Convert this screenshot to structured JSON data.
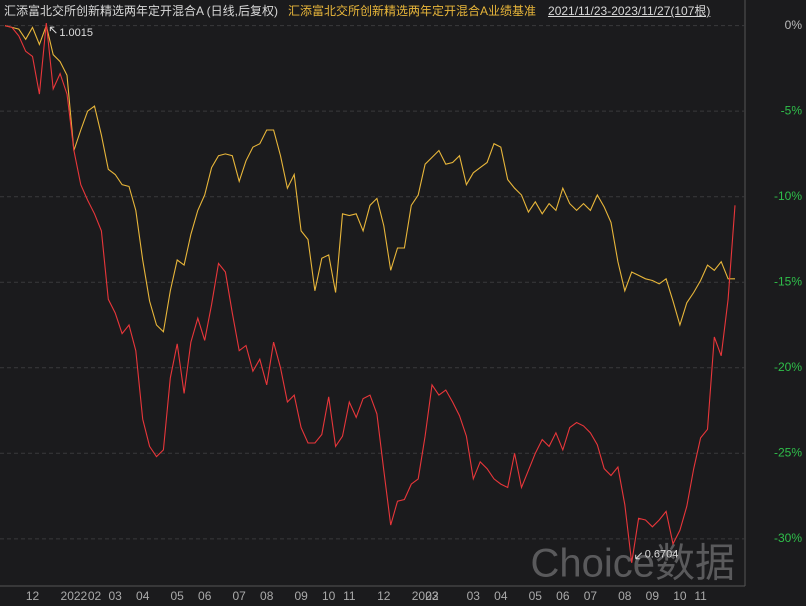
{
  "chart_data": {
    "type": "line",
    "period": "2021/11/23-2023/11/27(107根)",
    "watermark": "Choice数据",
    "max_label": "1.0015",
    "min_label": "0.6704",
    "categories": [
      null,
      null,
      null,
      null,
      "12",
      null,
      null,
      null,
      null,
      null,
      "2022",
      null,
      null,
      "02",
      null,
      null,
      "03",
      null,
      null,
      null,
      "04",
      null,
      null,
      null,
      null,
      "05",
      null,
      null,
      null,
      "06",
      null,
      null,
      null,
      null,
      "07",
      null,
      null,
      null,
      "08",
      null,
      null,
      null,
      null,
      "09",
      null,
      null,
      null,
      "10",
      null,
      null,
      "11",
      null,
      null,
      null,
      null,
      "12",
      null,
      null,
      null,
      null,
      null,
      "2023",
      "02",
      null,
      null,
      null,
      null,
      null,
      "03",
      null,
      null,
      null,
      "04",
      null,
      null,
      null,
      null,
      "05",
      null,
      null,
      null,
      "06",
      null,
      null,
      null,
      "07",
      null,
      null,
      null,
      null,
      "08",
      null,
      null,
      null,
      "09",
      null,
      null,
      null,
      "10",
      null,
      null,
      "11",
      null,
      null,
      null,
      null,
      null
    ],
    "series": [
      {
        "name": "汇添富北交所创新精选两年定开混合A (日线,后复权)",
        "color": "#e8363a",
        "values": [
          0,
          -0.1,
          -0.6,
          -1.5,
          -1.8,
          -4.0,
          0.15,
          -3.7,
          -2.8,
          -4.0,
          -7.3,
          -9.3,
          -10.2,
          -11.0,
          -12.0,
          -16.0,
          -16.8,
          -18.0,
          -17.5,
          -19.0,
          -23.0,
          -24.6,
          -25.2,
          -24.8,
          -20.6,
          -18.6,
          -21.5,
          -18.5,
          -17.1,
          -18.4,
          -16.3,
          -13.9,
          -14.4,
          -16.8,
          -19.0,
          -18.7,
          -20.2,
          -19.5,
          -21.0,
          -18.5,
          -20.0,
          -22.0,
          -21.6,
          -23.5,
          -24.4,
          -24.4,
          -23.9,
          -21.7,
          -24.6,
          -24.0,
          -22.0,
          -22.9,
          -21.8,
          -21.6,
          -22.7,
          -26.0,
          -29.2,
          -27.8,
          -27.7,
          -26.8,
          -26.5,
          -24.0,
          -21.0,
          -21.6,
          -21.3,
          -22.0,
          -22.8,
          -24.0,
          -26.5,
          -25.5,
          -25.9,
          -26.5,
          -26.8,
          -27.0,
          -25.0,
          -27.0,
          -26.0,
          -25.0,
          -24.2,
          -24.6,
          -23.8,
          -24.8,
          -23.5,
          -23.2,
          -23.4,
          -23.8,
          -24.5,
          -25.9,
          -26.3,
          -25.8,
          -28.0,
          -31.4,
          -28.8,
          -28.9,
          -29.3,
          -28.9,
          -28.4,
          -30.3,
          -29.5,
          -28.1,
          -25.9,
          -24.1,
          -23.6,
          -18.2,
          -19.3,
          -16.0,
          -10.5
        ]
      },
      {
        "name": "汇添富北交所创新精选两年定开混合A业绩基准",
        "color": "#e8b63a",
        "values": [
          0,
          -0.1,
          -0.2,
          -0.8,
          -0.1,
          -1.1,
          0,
          -1.7,
          -2.1,
          -2.9,
          -7.3,
          -6.1,
          -5.0,
          -4.7,
          -6.4,
          -8.4,
          -8.7,
          -9.3,
          -9.4,
          -10.8,
          -13.7,
          -16.1,
          -17.5,
          -17.9,
          -15.5,
          -13.7,
          -14.0,
          -12.2,
          -10.8,
          -9.9,
          -8.3,
          -7.6,
          -7.5,
          -7.6,
          -9.1,
          -7.9,
          -7.1,
          -6.9,
          -6.1,
          -6.1,
          -7.6,
          -9.5,
          -8.7,
          -12.0,
          -12.5,
          -15.5,
          -13.6,
          -13.4,
          -15.6,
          -11.0,
          -11.1,
          -11.0,
          -12.0,
          -10.5,
          -10.1,
          -11.7,
          -14.3,
          -13.0,
          -13.0,
          -10.5,
          -9.9,
          -8.1,
          -7.7,
          -7.3,
          -8.1,
          -8.0,
          -7.6,
          -9.3,
          -8.6,
          -8.3,
          -8.0,
          -6.9,
          -7.1,
          -9.0,
          -9.5,
          -9.9,
          -10.9,
          -10.3,
          -11.0,
          -10.4,
          -10.8,
          -9.5,
          -10.4,
          -10.8,
          -10.4,
          -10.8,
          -9.9,
          -10.6,
          -11.5,
          -13.8,
          -15.5,
          -14.4,
          -14.6,
          -14.8,
          -14.9,
          -15.1,
          -14.8,
          -16.1,
          -17.5,
          -16.2,
          -15.6,
          -14.9,
          -14.0,
          -14.3,
          -13.8,
          -14.8,
          -14.8
        ]
      }
    ],
    "ylim": [
      -32.7,
      1.5
    ],
    "yticks": [
      {
        "value": 0,
        "label": "0%"
      },
      {
        "value": -5,
        "label": "-5%"
      },
      {
        "value": -10,
        "label": "-10%"
      },
      {
        "value": -15,
        "label": "-15%"
      },
      {
        "value": -20,
        "label": "-20%"
      },
      {
        "value": -25,
        "label": "-25%"
      },
      {
        "value": -30,
        "label": "-30%"
      }
    ],
    "grid": true
  }
}
